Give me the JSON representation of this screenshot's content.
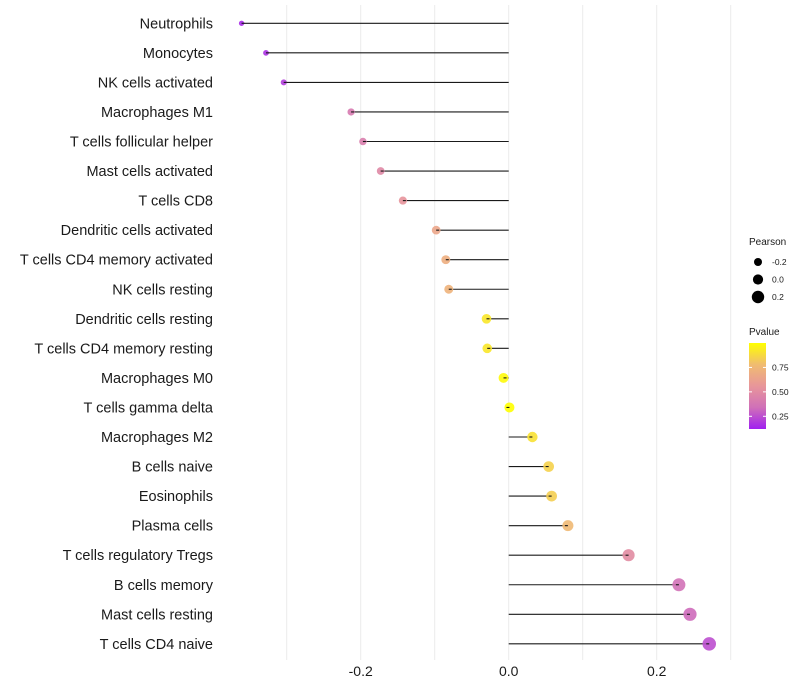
{
  "chart_data": {
    "type": "lollipop",
    "title": "",
    "xlabel": "",
    "ylabel": "",
    "xlim": [
      -0.38,
      0.31
    ],
    "x_ticks": [
      -0.2,
      0.0,
      0.2
    ],
    "x_tick_labels": [
      "-0.2",
      "0.0",
      "0.2"
    ],
    "minor_gridlines": [
      -0.3,
      -0.1,
      0.1,
      0.3
    ],
    "grid": true,
    "baseline": 0.0,
    "categories": [
      "Neutrophils",
      "Monocytes",
      "NK cells activated",
      "Macrophages M1",
      "T cells follicular helper",
      "Mast cells activated",
      "T cells CD8",
      "Dendritic cells activated",
      "T cells CD4 memory activated",
      "NK cells resting",
      "Dendritic cells resting",
      "T cells CD4 memory resting",
      "Macrophages M0",
      "T cells gamma delta",
      "Macrophages M2",
      "B cells naive",
      "Eosinophils",
      "Plasma cells",
      "T cells regulatory  Tregs",
      "B cells memory",
      "Mast cells resting",
      "T cells CD4 naive"
    ],
    "pearson": [
      -0.361,
      -0.328,
      -0.304,
      -0.213,
      -0.197,
      -0.173,
      -0.143,
      -0.098,
      -0.085,
      -0.081,
      -0.03,
      -0.029,
      -0.007,
      0.001,
      0.032,
      0.054,
      0.058,
      0.08,
      0.162,
      0.23,
      0.245,
      0.271
    ],
    "pvalue": [
      0.15,
      0.17,
      0.2,
      0.4,
      0.42,
      0.48,
      0.55,
      0.65,
      0.7,
      0.72,
      0.92,
      0.92,
      0.98,
      1.0,
      0.9,
      0.85,
      0.84,
      0.76,
      0.5,
      0.35,
      0.33,
      0.25
    ],
    "size_legend": {
      "title": "Pearson",
      "values": [
        -0.2,
        0.0,
        0.2
      ],
      "labels": [
        "-0.2",
        "0.0",
        "0.2"
      ]
    },
    "color_legend": {
      "title": "Pvalue",
      "range": [
        0.12,
        1.0
      ],
      "ticks": [
        0.25,
        0.5,
        0.75
      ],
      "tick_labels": [
        "0.25",
        "0.50",
        "0.75"
      ],
      "colors": [
        "#a020f0",
        "#d070b8",
        "#e8969a",
        "#f0bc70",
        "#ffff00"
      ],
      "legend_position": "right"
    }
  }
}
